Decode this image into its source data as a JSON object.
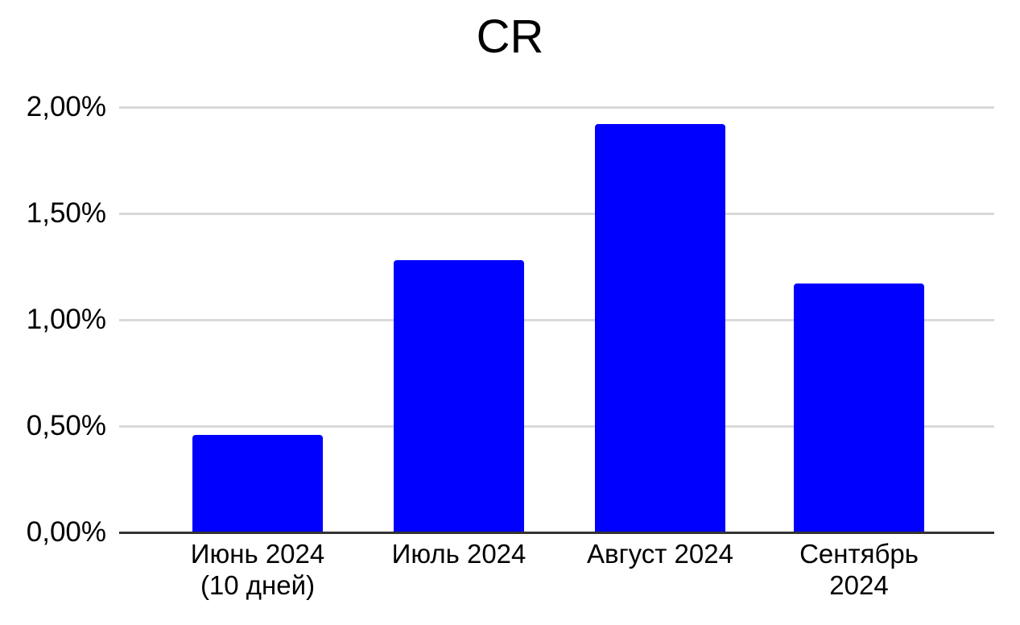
{
  "chart_data": {
    "type": "bar",
    "title": "CR",
    "categories": [
      "Июнь 2024 (10 дней)",
      "Июль 2024",
      "Август 2024",
      "Сентябрь 2024"
    ],
    "category_label_lines": [
      [
        "Июнь 2024",
        "(10 дней)"
      ],
      [
        "Июль 2024"
      ],
      [
        "Август 2024"
      ],
      [
        "Сентябрь",
        "2024"
      ]
    ],
    "series": [
      {
        "name": "CR",
        "values": [
          0.46,
          1.28,
          1.92,
          1.17
        ]
      }
    ],
    "unit": "%",
    "xlabel": "",
    "ylabel": "",
    "ylim": [
      0,
      2.0
    ],
    "y_ticks": [
      {
        "value": 0.0,
        "label": "0,00%"
      },
      {
        "value": 0.5,
        "label": "0,50%"
      },
      {
        "value": 1.0,
        "label": "1,00%"
      },
      {
        "value": 1.5,
        "label": "1,50%"
      },
      {
        "value": 2.0,
        "label": "2,00%"
      }
    ],
    "grid": true,
    "legend_position": "none",
    "colors": {
      "bar": "#0000ff",
      "gridline": "#d9d9d9",
      "axis": "#333333",
      "text": "#000000",
      "background": "#ffffff"
    }
  }
}
